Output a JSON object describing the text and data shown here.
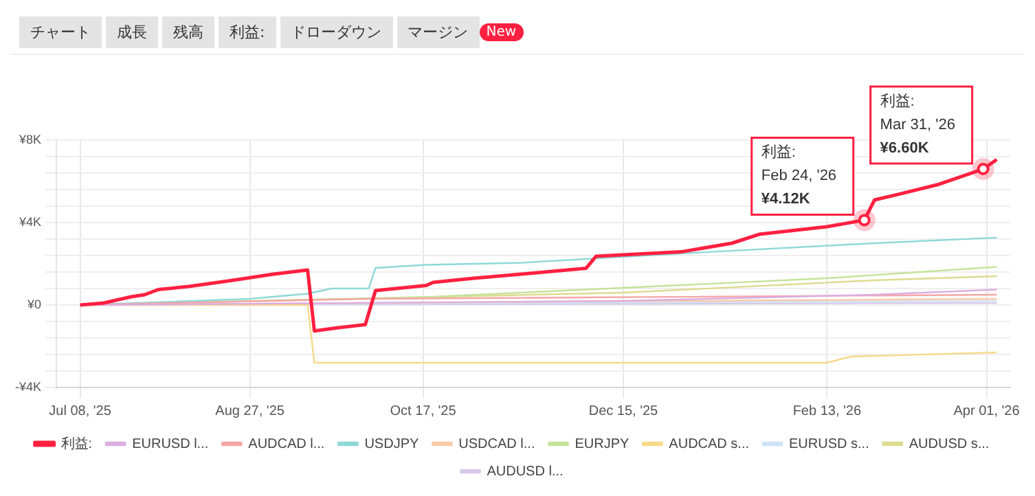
{
  "chart_data": {
    "type": "line",
    "annotations": [
      "チャート",
      "成長",
      "残高",
      "利益:",
      "ドローダウン",
      "マージン",
      "New",
      {
        "text": "利益:\nFeb 24, '26\n¥4.12K",
        "x": "2026-02-24",
        "y": 4120
      },
      {
        "text": "利益:\nMar 31, '26\n¥6.60K",
        "x": "2026-03-31",
        "y": 6600
      }
    ],
    "series": [
      {
        "name": "利益:",
        "color": "#ff2040",
        "x": [
          "2025-07-08",
          "2025-07-15",
          "2025-07-23",
          "2025-07-27",
          "2025-07-31",
          "2025-08-09",
          "2025-08-22",
          "2025-09-03",
          "2025-09-13",
          "2025-09-15",
          "2025-09-22",
          "2025-09-30",
          "2025-10-03",
          "2025-10-12",
          "2025-10-18",
          "2025-10-20",
          "2025-11-01",
          "2025-11-15",
          "2025-12-04",
          "2025-12-07",
          "2026-01-01",
          "2026-01-16",
          "2026-01-24",
          "2026-02-13",
          "2026-02-24",
          "2026-02-27",
          "2026-03-06",
          "2026-03-18",
          "2026-03-31",
          "2026-04-04"
        ],
        "values": [
          0,
          100,
          400,
          500,
          750,
          900,
          1200,
          1500,
          1700,
          -1260,
          -1100,
          -950,
          700,
          850,
          950,
          1100,
          1300,
          1500,
          1780,
          2370,
          2580,
          3000,
          3430,
          3800,
          4120,
          5100,
          5370,
          5860,
          6600,
          7060
        ]
      },
      {
        "name": "EURUSD l...",
        "color": "#dcaee0",
        "x": [
          "2025-07-08",
          "2025-12-15",
          "2026-02-27",
          "2026-04-04"
        ],
        "values": [
          0,
          200,
          500,
          750
        ]
      },
      {
        "name": "AUDCAD l...",
        "color": "#f4a6a6",
        "x": [
          "2025-07-08",
          "2025-10-01",
          "2026-04-04"
        ],
        "values": [
          0,
          300,
          500
        ]
      },
      {
        "name": "USDJPY",
        "color": "#8fd8d8",
        "x": [
          "2025-07-08",
          "2025-08-27",
          "2025-09-13",
          "2025-09-20",
          "2025-10-01",
          "2025-10-03",
          "2025-10-18",
          "2025-11-15",
          "2026-01-01",
          "2026-02-27",
          "2026-04-04"
        ],
        "values": [
          0,
          300,
          550,
          800,
          800,
          1800,
          1950,
          2050,
          2500,
          3000,
          3270
        ]
      },
      {
        "name": "USDCAD l...",
        "color": "#f9c9a8",
        "x": [
          "2025-07-08",
          "2026-04-04"
        ],
        "values": [
          0,
          300
        ]
      },
      {
        "name": "EURJPY",
        "color": "#c5e39a",
        "x": [
          "2025-07-08",
          "2025-10-20",
          "2026-02-13",
          "2026-04-04"
        ],
        "values": [
          0,
          400,
          1300,
          1850
        ]
      },
      {
        "name": "AUDCAD s...",
        "color": "#f6d98a",
        "x": [
          "2025-07-08",
          "2025-09-13",
          "2025-09-15",
          "2026-02-13",
          "2026-02-20",
          "2026-04-04"
        ],
        "values": [
          0,
          0,
          -2800,
          -2800,
          -2500,
          -2300
        ]
      },
      {
        "name": "EURUSD s...",
        "color": "#cfe4f7",
        "x": [
          "2025-07-08",
          "2026-04-04"
        ],
        "values": [
          0,
          200
        ]
      },
      {
        "name": "AUDUSD s...",
        "color": "#dcdc90",
        "x": [
          "2025-07-08",
          "2025-12-15",
          "2026-02-27",
          "2026-04-04"
        ],
        "values": [
          0,
          600,
          1200,
          1400
        ]
      },
      {
        "name": "AUDUSD l...",
        "color": "#d8c8e8",
        "x": [
          "2025-07-08",
          "2026-04-04"
        ],
        "values": [
          0,
          100
        ]
      }
    ],
    "xlim": [
      "2025-07-01",
      "2026-04-08"
    ],
    "xticks": [
      {
        "value": "2025-07-08",
        "label": "Jul 08, '25"
      },
      {
        "value": "2025-08-27",
        "label": "Aug 27, '25"
      },
      {
        "value": "2025-10-17",
        "label": "Oct 17, '25"
      },
      {
        "value": "2025-12-15",
        "label": "Dec 15, '25"
      },
      {
        "value": "2026-02-13",
        "label": "Feb 13, '26"
      },
      {
        "value": "2026-04-01",
        "label": "Apr 01, '26"
      }
    ],
    "ylim": [
      -4000,
      8000
    ],
    "yticks": [
      {
        "value": -4000,
        "label": "-¥4K"
      },
      {
        "value": -3200,
        "label": null
      },
      {
        "value": -2400,
        "label": null
      },
      {
        "value": -1600,
        "label": null
      },
      {
        "value": -800,
        "label": null
      },
      {
        "value": 0,
        "label": "¥0"
      },
      {
        "value": 800,
        "label": null
      },
      {
        "value": 1600,
        "label": null
      },
      {
        "value": 2400,
        "label": null
      },
      {
        "value": 3200,
        "label": null
      },
      {
        "value": 4000,
        "label": "¥4K"
      },
      {
        "value": 4800,
        "label": null
      },
      {
        "value": 5600,
        "label": null
      },
      {
        "value": 6400,
        "label": null
      },
      {
        "value": 7200,
        "label": null
      },
      {
        "value": 8000,
        "label": "¥8K"
      }
    ],
    "grid": true,
    "legend": "bottom",
    "marker": "none",
    "line_style": "solid"
  }
}
